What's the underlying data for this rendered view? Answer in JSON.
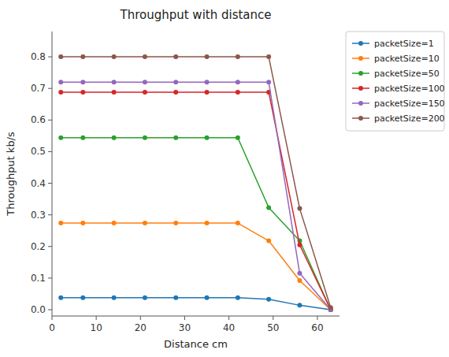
{
  "chart_data": {
    "type": "line",
    "title": "Throughput with distance",
    "xlabel": "Distance cm",
    "ylabel": "Throughput kb/s",
    "x": [
      2,
      7,
      14,
      21,
      28,
      35,
      42,
      49,
      56,
      63
    ],
    "series": [
      {
        "name": "packetSize=1",
        "color": "#1f77b4",
        "values": [
          0.038,
          0.038,
          0.038,
          0.038,
          0.038,
          0.038,
          0.038,
          0.033,
          0.014,
          0.0
        ]
      },
      {
        "name": "packetSize=10",
        "color": "#ff7f0e",
        "values": [
          0.274,
          0.274,
          0.274,
          0.274,
          0.274,
          0.274,
          0.274,
          0.218,
          0.092,
          0.0
        ]
      },
      {
        "name": "packetSize=50",
        "color": "#2ca02c",
        "values": [
          0.544,
          0.544,
          0.544,
          0.544,
          0.544,
          0.544,
          0.544,
          0.323,
          0.218,
          0.0
        ]
      },
      {
        "name": "packetSize=100",
        "color": "#d62728",
        "values": [
          0.688,
          0.688,
          0.688,
          0.688,
          0.688,
          0.688,
          0.688,
          0.688,
          0.205,
          0.0
        ]
      },
      {
        "name": "packetSize=150",
        "color": "#9467bd",
        "values": [
          0.72,
          0.72,
          0.72,
          0.72,
          0.72,
          0.72,
          0.72,
          0.72,
          0.115,
          0.0
        ]
      },
      {
        "name": "packetSize=200",
        "color": "#8c564b",
        "values": [
          0.8,
          0.8,
          0.8,
          0.8,
          0.8,
          0.8,
          0.8,
          0.8,
          0.32,
          0.007
        ]
      }
    ],
    "xlim": [
      0,
      65
    ],
    "ylim": [
      -0.02,
      0.88
    ],
    "xticks": [
      0,
      10,
      20,
      30,
      40,
      50,
      60
    ],
    "yticks": [
      {
        "value": 0.0,
        "label": "0.0"
      },
      0.1,
      0.2,
      0.3,
      0.4,
      0.5,
      0.6,
      0.7,
      0.8
    ],
    "legend": "upper right",
    "grid": false,
    "marker": "point",
    "line_style": "solid"
  }
}
